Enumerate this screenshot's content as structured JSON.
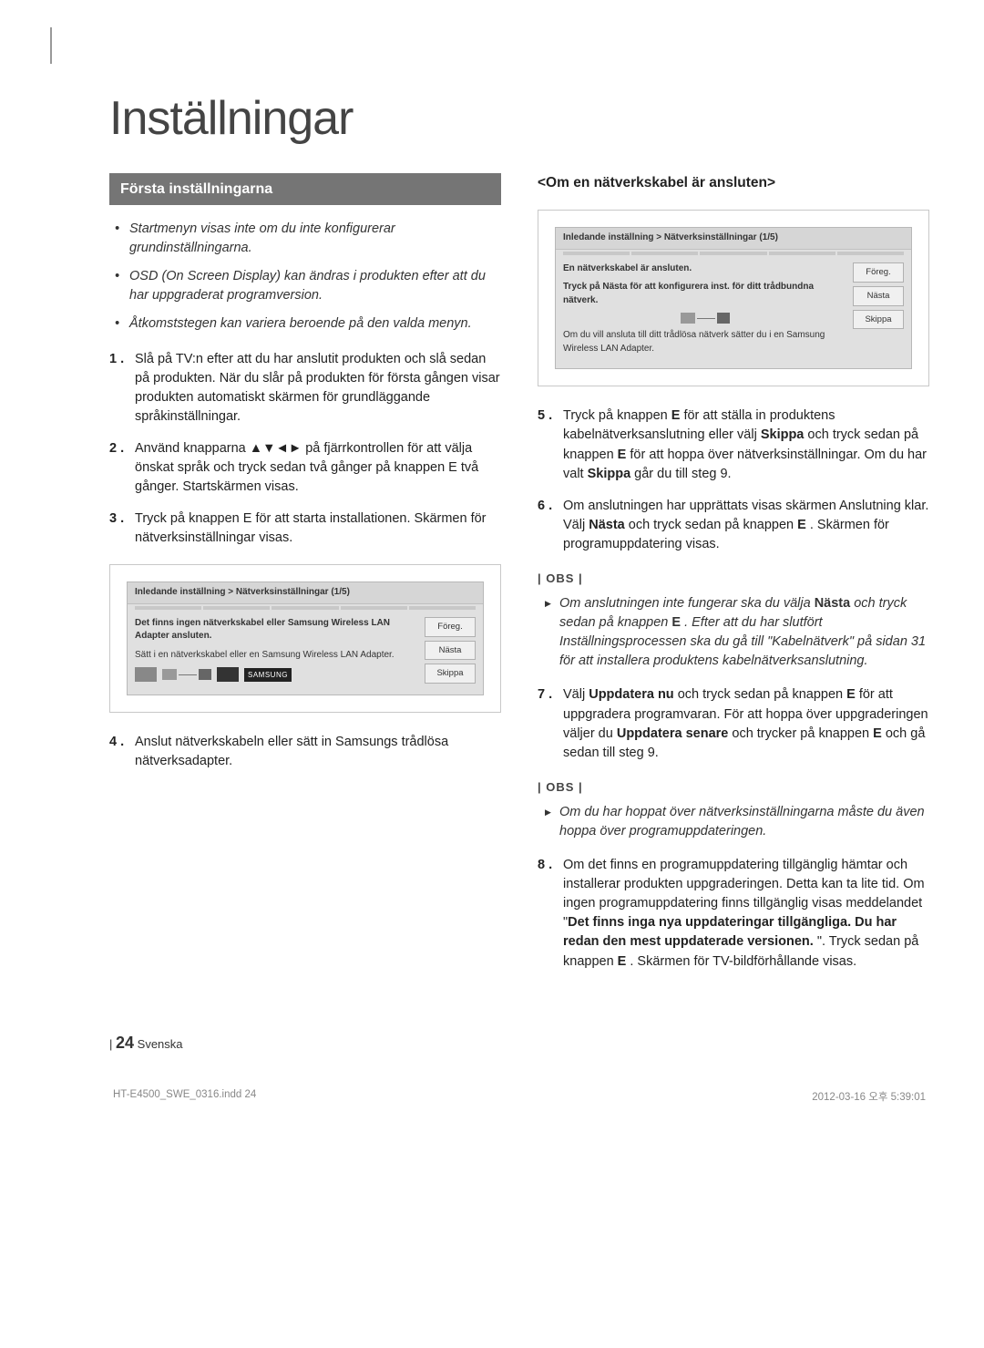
{
  "page": {
    "title": "Inställningar",
    "number": "24",
    "lang_label": "Svenska"
  },
  "left": {
    "heading": "Första inställningarna",
    "bullets": [
      "Startmenyn visas inte om du inte konfigurerar grundinställningarna.",
      "OSD (On Screen Display) kan ändras i produkten efter att du har uppgraderat programversion.",
      "Åtkomststegen kan variera beroende på den valda menyn."
    ],
    "steps": [
      {
        "n": "1 .",
        "body": "Slå på TV:n efter att du har anslutit produkten och slå sedan på produkten. När du slår på produkten för första gången visar produkten automatiskt skärmen för grundläggande språkinställningar."
      },
      {
        "n": "2 .",
        "body": "Använd knapparna ▲▼◄► på fjärrkontrollen för att välja önskat språk och tryck sedan två gånger på knappen E två gånger. Startskärmen visas."
      },
      {
        "n": "3 .",
        "body": "Tryck på knappen E för att starta installationen. Skärmen för nätverksinställningar visas."
      },
      {
        "n": "4 .",
        "body": "Anslut nätverkskabeln eller sätt in Samsungs trådlösa nätverksadapter."
      }
    ],
    "dialog1": {
      "header": "Inledande inställning > Nätverksinställningar (1/5)",
      "line1": "Det finns ingen nätverkskabel eller Samsung Wireless LAN Adapter ansluten.",
      "line2": "Sätt i en nätverkskabel eller en Samsung Wireless LAN Adapter.",
      "btn_prev": "Föreg.",
      "btn_next": "Nästa",
      "btn_skip": "Skippa",
      "samsung": "SAMSUNG"
    }
  },
  "right": {
    "heading": "<Om en nätverkskabel är ansluten>",
    "dialog2": {
      "header": "Inledande inställning > Nätverksinställningar (1/5)",
      "line1": "En nätverkskabel är ansluten.",
      "line2": "Tryck på Nästa för att konfigurera inst. för ditt trådbundna nätverk.",
      "footer": "Om du vill ansluta till ditt trådlösa nätverk sätter du i en Samsung Wireless LAN Adapter.",
      "btn_prev": "Föreg.",
      "btn_next": "Nästa",
      "btn_skip": "Skippa"
    },
    "steps_a": [
      {
        "n": "5 .",
        "body_pre": "Tryck på knappen ",
        "body_mid": " för att ställa in produktens kabelnätverksanslutning eller välj ",
        "skippa": "Skippa",
        "body_mid2": " och tryck sedan på knappen ",
        "body_post": " för att hoppa över nätverksinställningar. Om du har valt ",
        "skippa2": "Skippa",
        "body_end": " går du till steg 9."
      },
      {
        "n": "6 .",
        "body_pre": "Om anslutningen har upprättats visas skärmen Anslutning klar. Välj ",
        "nasta": "Nästa",
        "body_mid": " och tryck sedan på knappen ",
        "body_post": ". Skärmen för programuppdatering visas."
      }
    ],
    "obs1": "| OBS |",
    "note1_pre": "Om anslutningen inte fungerar ska du välja ",
    "note1_bold": "Nästa",
    "note1_mid": " och tryck sedan på knappen ",
    "note1_post": ". Efter att du har slutfört Inställningsprocessen ska du gå till \"Kabelnätverk\" på sidan 31 för att installera produktens kabelnätverksanslutning.",
    "step7": {
      "n": "7 .",
      "p1": "Välj ",
      "b1": "Uppdatera nu",
      "p2": " och tryck sedan på knappen ",
      "p3": " för att uppgradera programvaran. För att hoppa över uppgraderingen väljer du ",
      "b2": "Uppdatera senare",
      "p4": " och trycker på knappen ",
      "p5": " och gå sedan till steg 9."
    },
    "obs2": "| OBS |",
    "note2": "Om du har hoppat över nätverksinställningarna måste du även hoppa över programuppdateringen.",
    "step8": {
      "n": "8 .",
      "p1": "Om det finns en programuppdatering tillgänglig hämtar och installerar produkten uppgraderingen. Detta kan ta lite tid. Om ingen programuppdatering finns tillgänglig visas meddelandet \"",
      "b1": "Det finns inga nya uppdateringar tillgängliga. Du har redan den mest uppdaterade versionen.",
      "p2": "\". Tryck sedan på knappen ",
      "p3": ". Skärmen för TV-bildförhållande visas."
    }
  },
  "meta": {
    "file": "HT-E4500_SWE_0316.indd   24",
    "timestamp": "2012-03-16   오후 5:39:01"
  },
  "colors": {
    "heading_bg": "#757575",
    "text": "#222222",
    "muted": "#888888"
  }
}
